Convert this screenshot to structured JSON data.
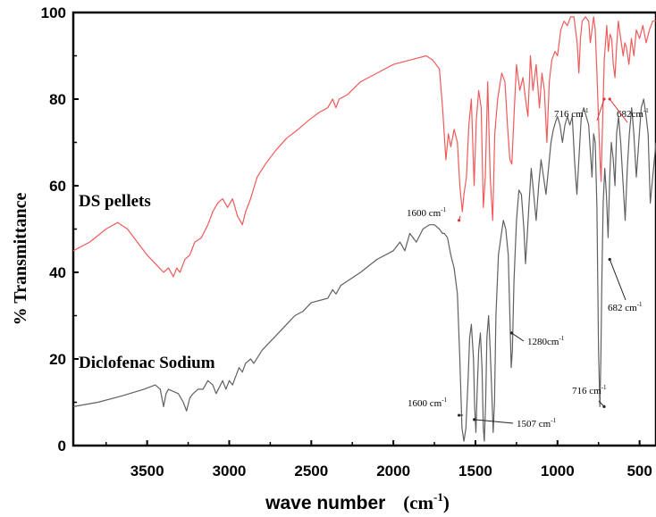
{
  "chart_data": {
    "type": "line",
    "xlabel": "wave number",
    "xlabel_unit": "(cm",
    "xlabel_unit_exp": "-1",
    "xlabel_unit_close": ")",
    "ylabel": "% Transmittance",
    "xlim": [
      3950,
      400
    ],
    "ylim": [
      0,
      100
    ],
    "x_reversed": true,
    "x_ticks": [
      3500,
      3000,
      2500,
      2000,
      1500,
      1000,
      500
    ],
    "y_ticks": [
      0,
      20,
      40,
      60,
      80,
      100
    ],
    "grid": false,
    "series": [
      {
        "name": "DS pellets",
        "color": "#f05a5a",
        "points": [
          [
            3950,
            45
          ],
          [
            3850,
            47
          ],
          [
            3750,
            50
          ],
          [
            3680,
            51.5
          ],
          [
            3620,
            50
          ],
          [
            3560,
            47
          ],
          [
            3500,
            44
          ],
          [
            3450,
            42
          ],
          [
            3400,
            40
          ],
          [
            3370,
            41
          ],
          [
            3340,
            39
          ],
          [
            3320,
            41
          ],
          [
            3300,
            40
          ],
          [
            3270,
            43
          ],
          [
            3240,
            44
          ],
          [
            3210,
            47
          ],
          [
            3170,
            48
          ],
          [
            3130,
            51
          ],
          [
            3100,
            54
          ],
          [
            3070,
            56
          ],
          [
            3040,
            57
          ],
          [
            3010,
            55
          ],
          [
            2980,
            57
          ],
          [
            2950,
            53
          ],
          [
            2920,
            51
          ],
          [
            2900,
            54
          ],
          [
            2870,
            57
          ],
          [
            2830,
            62
          ],
          [
            2780,
            65
          ],
          [
            2720,
            68
          ],
          [
            2650,
            71
          ],
          [
            2580,
            73
          ],
          [
            2520,
            75
          ],
          [
            2450,
            77
          ],
          [
            2400,
            78
          ],
          [
            2370,
            80
          ],
          [
            2350,
            78
          ],
          [
            2330,
            80
          ],
          [
            2280,
            81
          ],
          [
            2200,
            84
          ],
          [
            2100,
            86
          ],
          [
            2000,
            88
          ],
          [
            1900,
            89
          ],
          [
            1800,
            90
          ],
          [
            1760,
            89
          ],
          [
            1720,
            87
          ],
          [
            1700,
            78
          ],
          [
            1680,
            66
          ],
          [
            1665,
            72
          ],
          [
            1650,
            69
          ],
          [
            1630,
            73
          ],
          [
            1610,
            70
          ],
          [
            1595,
            60
          ],
          [
            1580,
            54
          ],
          [
            1570,
            58
          ],
          [
            1555,
            62
          ],
          [
            1540,
            74
          ],
          [
            1525,
            80
          ],
          [
            1508,
            60
          ],
          [
            1495,
            75
          ],
          [
            1480,
            82
          ],
          [
            1465,
            78
          ],
          [
            1452,
            55
          ],
          [
            1440,
            62
          ],
          [
            1425,
            84
          ],
          [
            1410,
            62
          ],
          [
            1395,
            52
          ],
          [
            1382,
            72
          ],
          [
            1365,
            80
          ],
          [
            1340,
            86
          ],
          [
            1320,
            84
          ],
          [
            1305,
            74
          ],
          [
            1290,
            66
          ],
          [
            1278,
            65
          ],
          [
            1265,
            76
          ],
          [
            1250,
            88
          ],
          [
            1230,
            82
          ],
          [
            1210,
            85
          ],
          [
            1195,
            80
          ],
          [
            1180,
            76
          ],
          [
            1165,
            90
          ],
          [
            1150,
            82
          ],
          [
            1130,
            88
          ],
          [
            1110,
            78
          ],
          [
            1095,
            86
          ],
          [
            1080,
            82
          ],
          [
            1065,
            70
          ],
          [
            1050,
            84
          ],
          [
            1035,
            89
          ],
          [
            1015,
            91
          ],
          [
            1000,
            90
          ],
          [
            980,
            96
          ],
          [
            960,
            98
          ],
          [
            940,
            97
          ],
          [
            920,
            99
          ],
          [
            900,
            99
          ],
          [
            880,
            93
          ],
          [
            870,
            86
          ],
          [
            860,
            94
          ],
          [
            850,
            98
          ],
          [
            830,
            99
          ],
          [
            810,
            98
          ],
          [
            800,
            93
          ],
          [
            790,
            96
          ],
          [
            780,
            99
          ],
          [
            770,
            96
          ],
          [
            760,
            86
          ],
          [
            745,
            70
          ],
          [
            735,
            61
          ],
          [
            725,
            75
          ],
          [
            715,
            89
          ],
          [
            700,
            97
          ],
          [
            690,
            91
          ],
          [
            680,
            95
          ],
          [
            670,
            94
          ],
          [
            660,
            88
          ],
          [
            650,
            85
          ],
          [
            640,
            92
          ],
          [
            630,
            98
          ],
          [
            615,
            94
          ],
          [
            600,
            90
          ],
          [
            590,
            93
          ],
          [
            580,
            92
          ],
          [
            565,
            88
          ],
          [
            550,
            94
          ],
          [
            535,
            90
          ],
          [
            520,
            96
          ],
          [
            500,
            94
          ],
          [
            480,
            97
          ],
          [
            460,
            93
          ],
          [
            440,
            96
          ],
          [
            420,
            98
          ],
          [
            400,
            98
          ]
        ]
      },
      {
        "name": "Diclofenac Sodium",
        "color": "#606060",
        "points": [
          [
            3950,
            9
          ],
          [
            3800,
            10
          ],
          [
            3650,
            11.5
          ],
          [
            3520,
            13
          ],
          [
            3450,
            14
          ],
          [
            3420,
            13
          ],
          [
            3400,
            9
          ],
          [
            3385,
            12
          ],
          [
            3370,
            13
          ],
          [
            3340,
            12.5
          ],
          [
            3310,
            12
          ],
          [
            3280,
            10
          ],
          [
            3260,
            8
          ],
          [
            3240,
            11
          ],
          [
            3220,
            12
          ],
          [
            3190,
            13
          ],
          [
            3160,
            13
          ],
          [
            3130,
            15
          ],
          [
            3100,
            14
          ],
          [
            3080,
            12
          ],
          [
            3060,
            13.5
          ],
          [
            3040,
            15
          ],
          [
            3020,
            13
          ],
          [
            3000,
            15
          ],
          [
            2980,
            14
          ],
          [
            2960,
            16
          ],
          [
            2940,
            18
          ],
          [
            2920,
            17
          ],
          [
            2900,
            19
          ],
          [
            2870,
            20
          ],
          [
            2850,
            19
          ],
          [
            2800,
            22
          ],
          [
            2750,
            24
          ],
          [
            2700,
            26
          ],
          [
            2650,
            28
          ],
          [
            2600,
            30
          ],
          [
            2550,
            31
          ],
          [
            2500,
            33
          ],
          [
            2450,
            33.5
          ],
          [
            2400,
            34
          ],
          [
            2370,
            36
          ],
          [
            2350,
            35
          ],
          [
            2320,
            37
          ],
          [
            2280,
            38
          ],
          [
            2200,
            40
          ],
          [
            2100,
            43
          ],
          [
            2000,
            45
          ],
          [
            1960,
            47
          ],
          [
            1930,
            45
          ],
          [
            1900,
            49
          ],
          [
            1860,
            47
          ],
          [
            1820,
            50
          ],
          [
            1780,
            51
          ],
          [
            1750,
            51
          ],
          [
            1720,
            50
          ],
          [
            1700,
            49
          ],
          [
            1690,
            49
          ],
          [
            1670,
            48
          ],
          [
            1650,
            44
          ],
          [
            1630,
            41
          ],
          [
            1610,
            35
          ],
          [
            1595,
            20
          ],
          [
            1582,
            4
          ],
          [
            1570,
            1
          ],
          [
            1558,
            4
          ],
          [
            1545,
            15
          ],
          [
            1535,
            25
          ],
          [
            1525,
            28
          ],
          [
            1512,
            20
          ],
          [
            1505,
            9
          ],
          [
            1497,
            3
          ],
          [
            1490,
            12
          ],
          [
            1480,
            22
          ],
          [
            1470,
            26
          ],
          [
            1460,
            18
          ],
          [
            1452,
            4
          ],
          [
            1446,
            1
          ],
          [
            1438,
            10
          ],
          [
            1430,
            25
          ],
          [
            1420,
            30
          ],
          [
            1410,
            22
          ],
          [
            1400,
            12
          ],
          [
            1392,
            3
          ],
          [
            1384,
            10
          ],
          [
            1375,
            30
          ],
          [
            1360,
            44
          ],
          [
            1345,
            48
          ],
          [
            1330,
            52
          ],
          [
            1315,
            50
          ],
          [
            1300,
            44
          ],
          [
            1290,
            30
          ],
          [
            1282,
            18
          ],
          [
            1275,
            22
          ],
          [
            1265,
            38
          ],
          [
            1250,
            52
          ],
          [
            1235,
            59
          ],
          [
            1220,
            58
          ],
          [
            1205,
            50
          ],
          [
            1195,
            42
          ],
          [
            1185,
            48
          ],
          [
            1175,
            55
          ],
          [
            1160,
            64
          ],
          [
            1145,
            58
          ],
          [
            1130,
            52
          ],
          [
            1115,
            60
          ],
          [
            1100,
            66
          ],
          [
            1085,
            62
          ],
          [
            1070,
            58
          ],
          [
            1055,
            64
          ],
          [
            1040,
            70
          ],
          [
            1025,
            73
          ],
          [
            1010,
            75
          ],
          [
            1000,
            76
          ],
          [
            985,
            74
          ],
          [
            970,
            70
          ],
          [
            955,
            74
          ],
          [
            940,
            76
          ],
          [
            925,
            74
          ],
          [
            910,
            76
          ],
          [
            895,
            65
          ],
          [
            882,
            58
          ],
          [
            870,
            66
          ],
          [
            855,
            76
          ],
          [
            840,
            78
          ],
          [
            825,
            76
          ],
          [
            810,
            74
          ],
          [
            800,
            68
          ],
          [
            790,
            62
          ],
          [
            780,
            72
          ],
          [
            770,
            70
          ],
          [
            760,
            55
          ],
          [
            750,
            22
          ],
          [
            742,
            9
          ],
          [
            736,
            20
          ],
          [
            730,
            38
          ],
          [
            722,
            56
          ],
          [
            712,
            64
          ],
          [
            702,
            58
          ],
          [
            692,
            48
          ],
          [
            682,
            62
          ],
          [
            672,
            70
          ],
          [
            660,
            66
          ],
          [
            650,
            60
          ],
          [
            640,
            72
          ],
          [
            628,
            76
          ],
          [
            615,
            70
          ],
          [
            600,
            60
          ],
          [
            588,
            52
          ],
          [
            575,
            64
          ],
          [
            562,
            72
          ],
          [
            548,
            78
          ],
          [
            535,
            72
          ],
          [
            520,
            62
          ],
          [
            505,
            70
          ],
          [
            490,
            78
          ],
          [
            475,
            80
          ],
          [
            460,
            76
          ],
          [
            448,
            72
          ],
          [
            435,
            56
          ],
          [
            420,
            62
          ],
          [
            400,
            70
          ]
        ]
      }
    ],
    "annotations": [
      {
        "text": "716 cm",
        "sup": "-1",
        "x": 716,
        "y": 80,
        "dir": "right"
      },
      {
        "text": "682cm",
        "sup": "-1",
        "x": 682,
        "y": 80,
        "dir": "down"
      },
      {
        "text": "1600 cm",
        "sup": "-1",
        "x": 1600,
        "y": 52,
        "dir": "right"
      },
      {
        "text": "1280cm",
        "sup": "-1",
        "x": 1280,
        "y": 26,
        "dir": "left"
      },
      {
        "text": "682 cm",
        "sup": "-1",
        "x": 682,
        "y": 43,
        "dir": "up"
      },
      {
        "text": "716 cm",
        "sup": "-1",
        "x": 716,
        "y": 9,
        "dir": "down"
      },
      {
        "text": "1600 cm",
        "sup": "-1",
        "x": 1600,
        "y": 7,
        "dir": "right"
      },
      {
        "text": "1507 cm",
        "sup": "-1",
        "x": 1507,
        "y": 6,
        "dir": "left"
      }
    ],
    "series_labels": [
      {
        "text": "DS pellets"
      },
      {
        "text": "Diclofenac Sodium"
      }
    ]
  }
}
